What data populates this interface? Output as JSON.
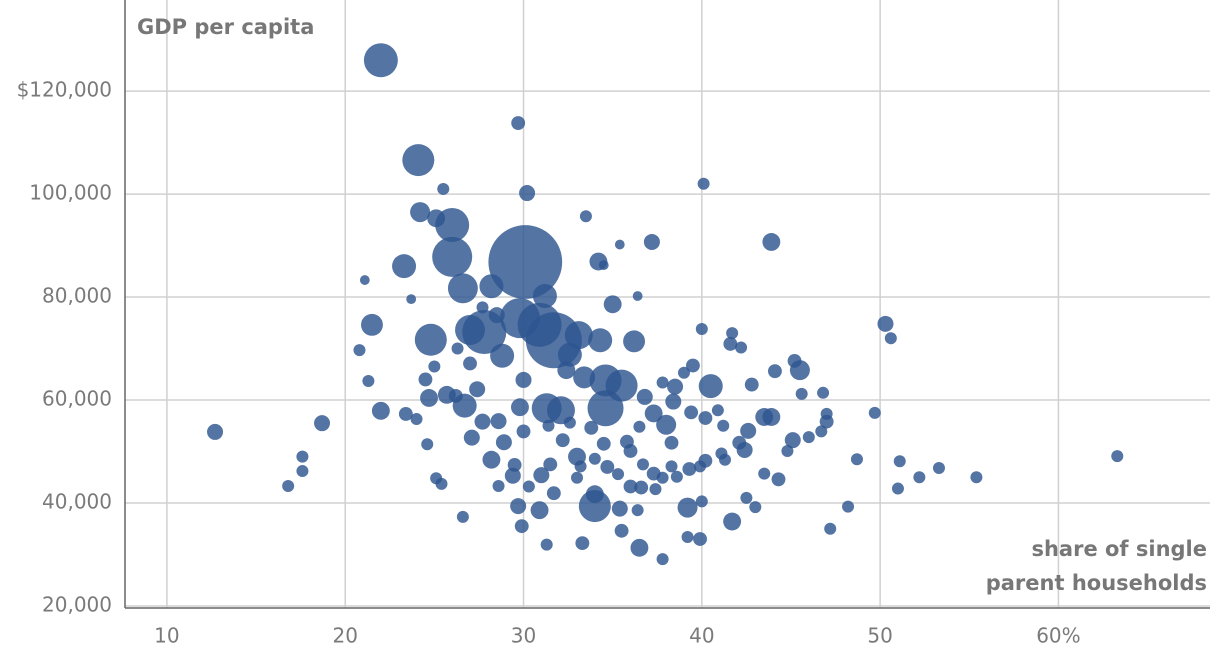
{
  "chart_data": {
    "type": "bubble",
    "ylabel": "GDP per capita",
    "xlabel": [
      "share of single",
      "parent households"
    ],
    "color": "#2e5590",
    "grid": true,
    "xlim": [
      7.65,
      68.5
    ],
    "ylim": [
      19600,
      137700
    ],
    "xticks": [
      10,
      20,
      30,
      40,
      50,
      {
        "value": 60,
        "label": "60%"
      }
    ],
    "yticks": [
      {
        "value": 20000,
        "label": "20,000"
      },
      {
        "value": 40000,
        "label": "40,000"
      },
      {
        "value": 60000,
        "label": "60,000"
      },
      {
        "value": 80000,
        "label": "80,000"
      },
      {
        "value": 100000,
        "label": "100,000"
      },
      {
        "value": 120000,
        "label": "$120,000"
      }
    ],
    "x": [
      22.0,
      24.1,
      29.7,
      30.2,
      40.1,
      43.9,
      25.5,
      24.2,
      26.0,
      25.1,
      33.5,
      37.2,
      35.4,
      30.1,
      26.0,
      23.3,
      34.2,
      34.5,
      26.6,
      28.2,
      31.2,
      35.0,
      36.4,
      21.1,
      23.7,
      21.5,
      24.8,
      27.0,
      27.8,
      29.8,
      30.9,
      31.7,
      33.1,
      34.3,
      36.2,
      28.8,
      32.6,
      50.3,
      50.6,
      20.8,
      40.5,
      45.5,
      41.6,
      40.0,
      41.7,
      42.2,
      44.1,
      45.2,
      34.6,
      35.5,
      34.6,
      34.0,
      30.0,
      29.8,
      31.3,
      32.1,
      26.7,
      27.7,
      22.0,
      21.3,
      12.7,
      18.7,
      16.8,
      17.6,
      17.6,
      63.3,
      55.4,
      53.3,
      52.2,
      51.0,
      51.1,
      48.7,
      48.2,
      47.2,
      49.7,
      36.5,
      37.8,
      33.3,
      31.3,
      29.9,
      29.7,
      30.9,
      41.7,
      39.2,
      39.9,
      39.2,
      40.0,
      26.6,
      24.6,
      25.1,
      25.4,
      24.0,
      23.4,
      24.7,
      25.7,
      27.1,
      28.2,
      28.9,
      29.4,
      29.5,
      30.3,
      31.0,
      31.5,
      32.2,
      33.0,
      33.2,
      34.0,
      34.5,
      34.7,
      35.3,
      35.8,
      36.0,
      36.7,
      37.3,
      37.4,
      37.8,
      38.3,
      38.6,
      39.3,
      39.9,
      40.2,
      41.1,
      41.3,
      42.5,
      43.0,
      43.5,
      44.3,
      44.8,
      45.1,
      46.0,
      46.7,
      47.0,
      47.0,
      46.8,
      45.6,
      43.9,
      43.5,
      42.6,
      42.1,
      41.2,
      40.9,
      40.2,
      39.4,
      38.4,
      38.0,
      37.3,
      36.5,
      36.8,
      37.8,
      38.5,
      39.0,
      39.5,
      42.8,
      42.4,
      38.3,
      36.0,
      33.8,
      32.6,
      31.4,
      30.0,
      28.6,
      27.4,
      26.2,
      25.0,
      24.5,
      26.3,
      27.0,
      28.5,
      27.7,
      32.4,
      33.4,
      34.0,
      35.4,
      35.5,
      36.4,
      36.6,
      33.0,
      31.7,
      28.6
    ],
    "values": [
      126000,
      106600,
      113800,
      100200,
      102000,
      90700,
      101000,
      96500,
      94000,
      95300,
      95700,
      90700,
      90200,
      86800,
      87800,
      86000,
      86900,
      86200,
      81700,
      82100,
      80200,
      78600,
      80200,
      83300,
      79600,
      74600,
      71700,
      73600,
      73200,
      75900,
      74600,
      71600,
      72600,
      71600,
      71400,
      68600,
      68800,
      74800,
      72000,
      69700,
      62700,
      65800,
      70900,
      73800,
      73000,
      70200,
      65600,
      67600,
      63800,
      62800,
      58400,
      39400,
      63900,
      58600,
      58400,
      58000,
      58900,
      55800,
      57900,
      63700,
      53800,
      55500,
      43300,
      49000,
      46200,
      49100,
      45000,
      46800,
      45000,
      42800,
      48100,
      48500,
      39300,
      35000,
      57500,
      31300,
      29100,
      32200,
      31900,
      35500,
      39400,
      38600,
      36400,
      39100,
      33000,
      33400,
      40300,
      37300,
      51400,
      44800,
      43700,
      56300,
      57300,
      60400,
      61000,
      52700,
      48400,
      51800,
      45300,
      47400,
      43200,
      45400,
      47500,
      52200,
      49000,
      47100,
      48600,
      51500,
      47000,
      45600,
      51900,
      43200,
      47500,
      45700,
      42700,
      44900,
      47100,
      45100,
      46600,
      47100,
      48200,
      49600,
      48400,
      41000,
      39200,
      45700,
      44600,
      50100,
      52200,
      52800,
      53900,
      55800,
      57300,
      61400,
      61200,
      56700,
      56700,
      54000,
      51700,
      55000,
      58000,
      56500,
      57600,
      59700,
      55200,
      57400,
      54800,
      60600,
      63400,
      62600,
      65300,
      66700,
      63000,
      50300,
      51700,
      50100,
      54600,
      55600,
      55000,
      53900,
      55900,
      62100,
      60800,
      66500,
      64000,
      70000,
      67100,
      76500,
      78000,
      65800,
      64400,
      41700,
      38900,
      34600,
      38600,
      43000,
      44900,
      41900,
      43300
    ],
    "sizes": [
      72,
      64,
      12,
      16,
      9,
      20,
      9,
      25,
      72,
      20,
      9,
      16,
      6,
      340,
      100,
      36,
      20,
      6,
      56,
      36,
      36,
      20,
      6,
      6,
      6,
      30,
      64,
      56,
      121,
      100,
      121,
      196,
      49,
      36,
      30,
      36,
      36,
      16,
      9,
      9,
      36,
      25,
      12,
      9,
      9,
      9,
      12,
      12,
      64,
      64,
      81,
      64,
      16,
      20,
      56,
      49,
      36,
      16,
      20,
      9,
      16,
      16,
      9,
      9,
      9,
      9,
      9,
      9,
      9,
      9,
      9,
      9,
      9,
      9,
      9,
      20,
      9,
      12,
      9,
      12,
      16,
      20,
      20,
      25,
      12,
      9,
      9,
      9,
      9,
      9,
      9,
      9,
      12,
      20,
      20,
      16,
      20,
      16,
      16,
      12,
      9,
      16,
      12,
      12,
      20,
      9,
      9,
      12,
      12,
      9,
      12,
      12,
      9,
      12,
      9,
      9,
      9,
      9,
      12,
      9,
      12,
      9,
      9,
      9,
      9,
      9,
      12,
      9,
      16,
      9,
      9,
      12,
      9,
      9,
      9,
      20,
      20,
      16,
      12,
      9,
      9,
      12,
      12,
      16,
      25,
      20,
      9,
      16,
      9,
      16,
      9,
      12,
      12,
      16,
      12,
      12,
      12,
      9,
      9,
      12,
      16,
      16,
      12,
      9,
      12,
      9,
      12,
      16,
      9,
      20,
      30,
      20,
      16,
      12,
      9,
      12,
      9,
      12,
      9
    ]
  }
}
